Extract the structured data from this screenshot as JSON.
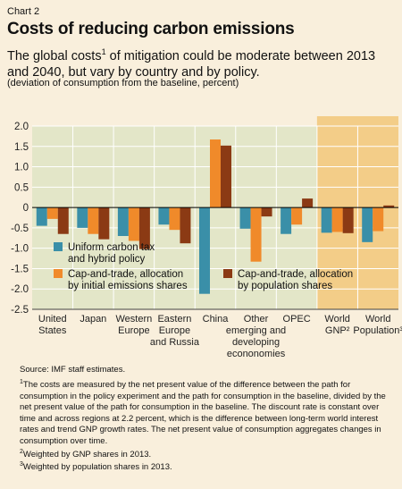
{
  "header": {
    "chart_label": "Chart 2",
    "title": "Costs of reducing carbon emissions",
    "subtitle_pre": "The global costs",
    "subtitle_sup": "1",
    "subtitle_post": " of mitigation could be moderate between 2013 and 2040, but vary by country and by policy.",
    "unit_note": "(deviation of consumption from the baseline, percent)"
  },
  "chart_data": {
    "type": "bar",
    "ylim": [
      -2.5,
      2.0
    ],
    "yticks": [
      "2.0",
      "1.5",
      "1.0",
      "0.5",
      "0",
      "-0.5",
      "-1.0",
      "-1.5",
      "-2.0",
      "-2.5"
    ],
    "grid": true,
    "categories": [
      [
        "United",
        "States"
      ],
      [
        "Japan"
      ],
      [
        "Western",
        "Europe"
      ],
      [
        "Eastern",
        "Europe",
        "and Russia"
      ],
      [
        "China"
      ],
      [
        "Other",
        "emerging and",
        "developing",
        "econonomies"
      ],
      [
        "OPEC"
      ],
      [
        "World",
        "GNP²"
      ],
      [
        "World",
        "Population³"
      ]
    ],
    "highlight_categories": [
      7,
      8
    ],
    "series": [
      {
        "name": "Uniform carbon tax and hybrid policy",
        "legend_lines": [
          "Uniform carbon tax",
          "and hybrid policy"
        ],
        "color": "#3a8fa8",
        "values": [
          -0.45,
          -0.5,
          -0.7,
          -0.42,
          -2.12,
          -0.52,
          -0.65,
          -0.62,
          -0.85
        ]
      },
      {
        "name": "Cap-and-trade, allocation by initial emissions shares",
        "legend_lines": [
          "Cap-and-trade, allocation",
          "by initial emissions shares"
        ],
        "color": "#f08a2a",
        "values": [
          -0.28,
          -0.65,
          -0.82,
          -0.55,
          1.67,
          -1.33,
          -0.42,
          -0.6,
          -0.58
        ]
      },
      {
        "name": "Cap-and-trade, allocation by population shares",
        "legend_lines": [
          "Cap-and-trade, allocation",
          "by population shares"
        ],
        "color": "#8b3a14",
        "values": [
          -0.65,
          -0.78,
          -1.02,
          -0.88,
          1.52,
          -0.22,
          0.22,
          -0.63,
          0.05
        ]
      }
    ]
  },
  "notes": {
    "source": "Source: IMF staff estimates.",
    "fn1_sup": "1",
    "fn1": "The costs are measured by the net present value of the difference between the path for consumption in the policy experiment and the path for consumption in the baseline, divided by the net present value of the path for consumption in the baseline. The discount rate is constant over time and across regions at 2.2 percent, which is the difference between long-term world interest rates and trend GNP growth rates. The net present value of consumption aggregates changes in consumption over time.",
    "fn2_sup": "2",
    "fn2": "Weighted by GNP shares in 2013.",
    "fn3_sup": "3",
    "fn3": "Weighted by population shares in 2013."
  },
  "colors": {
    "background": "#f9efdc",
    "plot": "#e3e6c8",
    "highlight": "#f3cd88"
  }
}
